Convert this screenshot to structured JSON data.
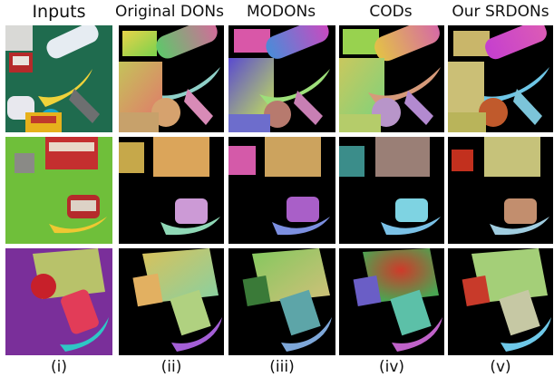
{
  "columns": [
    {
      "header": "Inputs",
      "label": "(i)"
    },
    {
      "header": "Original DONs",
      "label": "(ii)"
    },
    {
      "header": "MODONs",
      "label": "(iii)"
    },
    {
      "header": "CODs",
      "label": "(iv)"
    },
    {
      "header": "Our SRDONs",
      "label": "(v)"
    }
  ]
}
